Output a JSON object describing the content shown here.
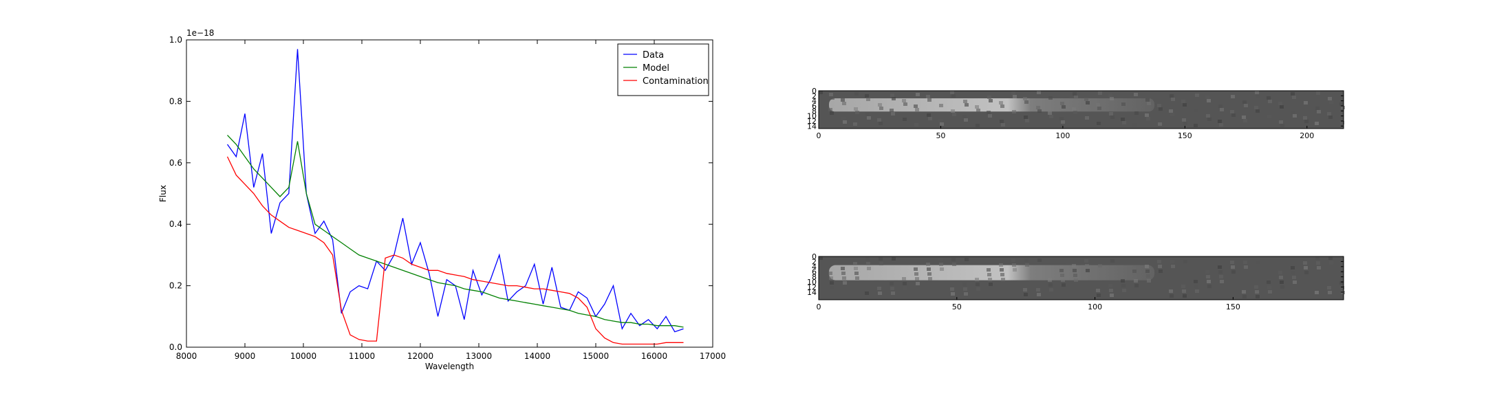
{
  "chart_data": [
    {
      "type": "line",
      "xlabel": "Wavelength",
      "ylabel": "Flux",
      "offset_text": "1e−18",
      "x": [
        8700,
        8850,
        9000,
        9150,
        9300,
        9450,
        9600,
        9750,
        9900,
        10050,
        10200,
        10350,
        10500,
        10650,
        10800,
        10950,
        11100,
        11250,
        11400,
        11550,
        11700,
        11850,
        12000,
        12150,
        12300,
        12450,
        12600,
        12750,
        12900,
        13050,
        13200,
        13350,
        13500,
        13650,
        13800,
        13950,
        14100,
        14250,
        14400,
        14550,
        14700,
        14850,
        15000,
        15150,
        15300,
        15450,
        15600,
        15750,
        15900,
        16050,
        16200,
        16350,
        16500
      ],
      "series": [
        {
          "name": "Data",
          "color": "#0000ff",
          "values": [
            0.66,
            0.62,
            0.76,
            0.52,
            0.63,
            0.37,
            0.47,
            0.5,
            0.97,
            0.5,
            0.37,
            0.41,
            0.35,
            0.11,
            0.18,
            0.2,
            0.19,
            0.28,
            0.25,
            0.3,
            0.42,
            0.27,
            0.34,
            0.24,
            0.1,
            0.22,
            0.2,
            0.09,
            0.25,
            0.17,
            0.22,
            0.3,
            0.15,
            0.18,
            0.2,
            0.27,
            0.14,
            0.26,
            0.13,
            0.12,
            0.18,
            0.16,
            0.1,
            0.14,
            0.2,
            0.06,
            0.11,
            0.07,
            0.09,
            0.06,
            0.1,
            0.05,
            0.06
          ]
        },
        {
          "name": "Model",
          "color": "#008000",
          "values": [
            0.69,
            0.66,
            0.62,
            0.58,
            0.55,
            0.52,
            0.49,
            0.52,
            0.67,
            0.5,
            0.4,
            0.38,
            0.36,
            0.34,
            0.32,
            0.3,
            0.29,
            0.28,
            0.27,
            0.26,
            0.25,
            0.24,
            0.23,
            0.22,
            0.21,
            0.205,
            0.2,
            0.19,
            0.185,
            0.18,
            0.17,
            0.16,
            0.155,
            0.15,
            0.145,
            0.14,
            0.135,
            0.13,
            0.125,
            0.12,
            0.11,
            0.105,
            0.1,
            0.09,
            0.085,
            0.08,
            0.08,
            0.075,
            0.075,
            0.07,
            0.07,
            0.07,
            0.065
          ]
        },
        {
          "name": "Contamination",
          "color": "#ff0000",
          "values": [
            0.62,
            0.56,
            0.53,
            0.5,
            0.46,
            0.43,
            0.41,
            0.39,
            0.38,
            0.37,
            0.36,
            0.34,
            0.3,
            0.12,
            0.04,
            0.025,
            0.02,
            0.02,
            0.29,
            0.3,
            0.29,
            0.27,
            0.26,
            0.25,
            0.25,
            0.24,
            0.235,
            0.23,
            0.22,
            0.215,
            0.21,
            0.205,
            0.2,
            0.2,
            0.195,
            0.19,
            0.19,
            0.185,
            0.18,
            0.175,
            0.16,
            0.13,
            0.06,
            0.03,
            0.015,
            0.01,
            0.01,
            0.01,
            0.01,
            0.01,
            0.015,
            0.015,
            0.015
          ]
        }
      ],
      "xlim": [
        8000,
        17000
      ],
      "xticks": [
        8000,
        9000,
        10000,
        11000,
        12000,
        13000,
        14000,
        15000,
        16000,
        17000
      ],
      "ylim": [
        0,
        1
      ],
      "yticks": [
        {
          "value": 0,
          "label": "0.0"
        },
        0.2,
        0.4,
        0.6,
        0.8,
        {
          "value": 1,
          "label": "1.0"
        }
      ],
      "legend": "upper right"
    },
    {
      "type": "image",
      "xlim": [
        0,
        215
      ],
      "xticks": [
        0,
        50,
        100,
        150,
        200
      ],
      "ylim": [
        0,
        15
      ],
      "yticks": [
        0,
        2,
        4,
        6,
        8,
        10,
        12,
        14
      ]
    },
    {
      "type": "image",
      "xlim": [
        0,
        190
      ],
      "xticks": [
        0,
        50,
        100,
        150
      ],
      "ylim": [
        0,
        17
      ],
      "yticks": [
        0,
        2,
        4,
        6,
        8,
        10,
        12,
        14
      ]
    }
  ]
}
